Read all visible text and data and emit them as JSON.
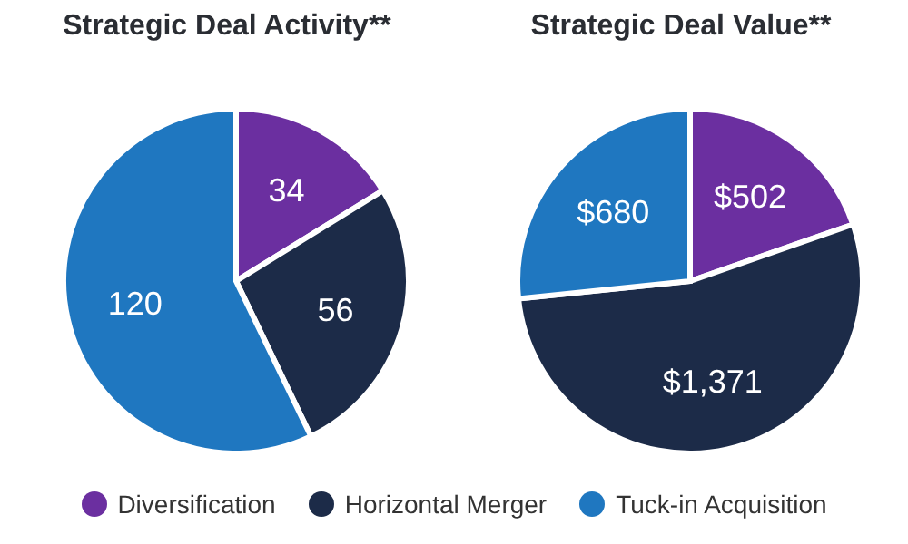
{
  "chart_data": [
    {
      "type": "pie",
      "title": "Strategic Deal Activity**",
      "categories": [
        "Diversification",
        "Horizontal Merger",
        "Tuck-in Acquisition"
      ],
      "values": [
        34,
        56,
        120
      ],
      "colors": [
        "#6b2fa0",
        "#1c2b48",
        "#1f77c0"
      ],
      "data_labels": true,
      "legend": "bottom"
    },
    {
      "type": "pie",
      "title": "Strategic Deal Value**",
      "categories": [
        null,
        null,
        null
      ],
      "values": [
        502,
        1371,
        680
      ],
      "colors": [
        "#6b2fa0",
        "#1c2b48",
        "#1f77c0"
      ],
      "value_labels": [
        "$502",
        "$1,371",
        "$680"
      ]
    }
  ]
}
